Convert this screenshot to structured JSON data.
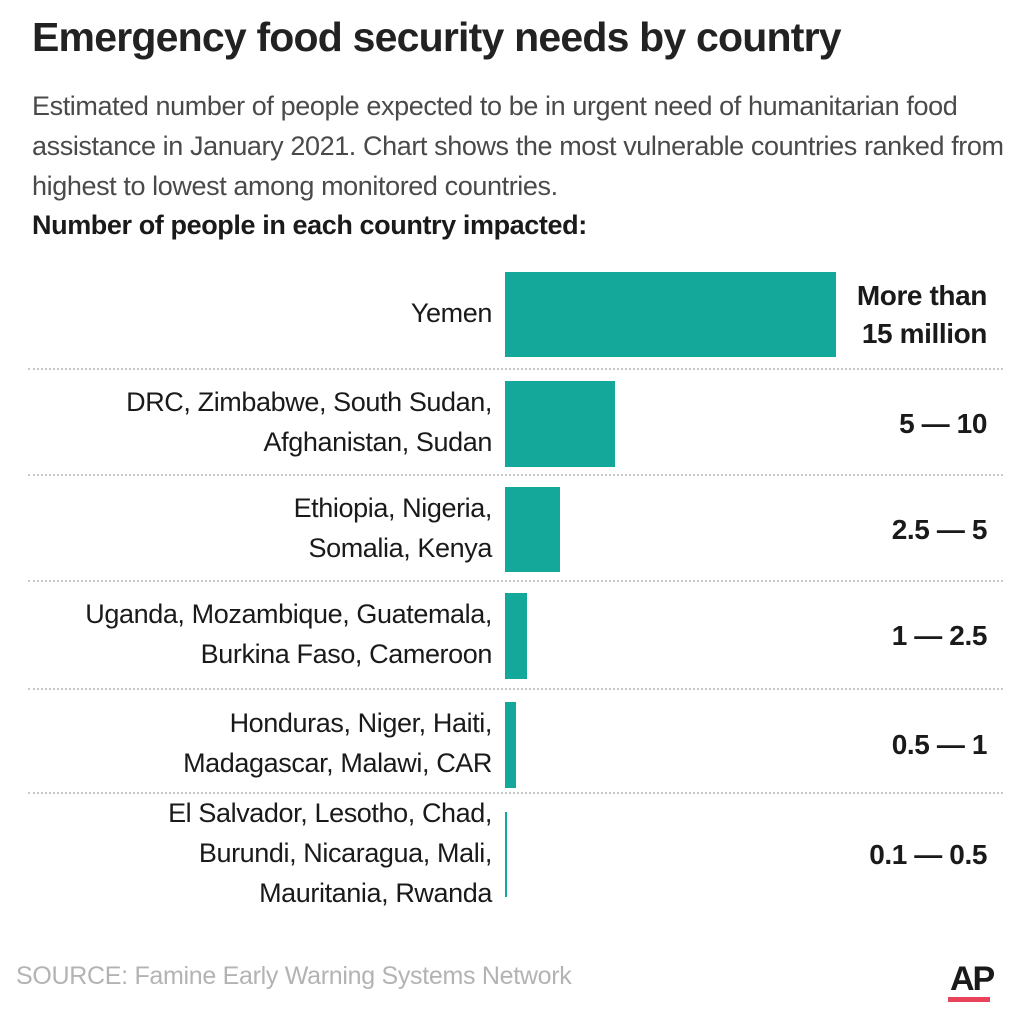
{
  "title": "Emergency food security needs by country",
  "subtitle": "Estimated number of people expected to be in urgent need of humanitarian food assistance in January 2021. Chart shows the most vulnerable countries ranked from highest to lowest among monitored countries.",
  "section_label": "Number of people in each country impacted:",
  "source": "SOURCE:  Famine Early Warning Systems Network",
  "logo": "AP",
  "colors": {
    "bar": "#14a89b",
    "logo_accent": "#e8435a"
  },
  "chart_data": {
    "type": "bar",
    "orientation": "horizontal",
    "unit": "millions of people",
    "grid": false,
    "categories": [
      "Yemen",
      "DRC, Zimbabwe, South Sudan,\nAfghanistan, Sudan",
      "Ethiopia, Nigeria,\nSomalia, Kenya",
      "Uganda, Mozambique, Guatemala,\nBurkina Faso, Cameroon",
      "Honduras, Niger, Haiti,\nMadagascar, Malawi, CAR",
      "El Salvador, Lesotho, Chad,\nBurundi, Nicaragua, Mali,\nMauritania, Rwanda"
    ],
    "values": [
      15,
      5,
      2.5,
      1,
      0.5,
      0.1
    ],
    "value_labels": [
      "More than\n15 million",
      "5 — 10",
      "2.5 — 5",
      "1 — 2.5",
      "0.5 — 1",
      "0.1 — 0.5"
    ],
    "xlim": [
      0,
      15
    ]
  }
}
